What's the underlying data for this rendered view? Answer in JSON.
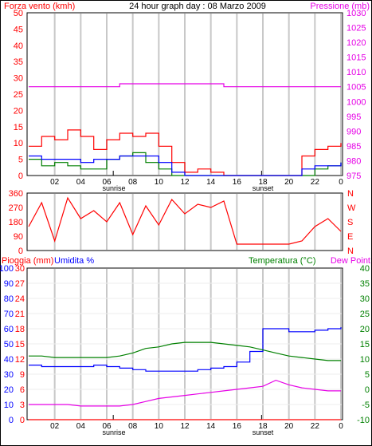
{
  "header": {
    "title": "24 hour graph day : 08 Marzo 2009",
    "left_label": "Forza vento (kmh)",
    "right_label": "Pressione (mb)"
  },
  "colors": {
    "red": "#ff0000",
    "green": "#008000",
    "blue": "#0000ff",
    "magenta": "#e600e6",
    "grid": "#c8c8c8",
    "sun_marker": "#000000"
  },
  "x_ticks": [
    "02",
    "04",
    "06",
    "08",
    "10",
    "12",
    "14",
    "16",
    "18",
    "20",
    "22",
    "0"
  ],
  "x_markers": {
    "sunrise": "sunrise",
    "sunset": "sunset"
  },
  "chart_data": [
    {
      "type": "line",
      "name": "wind_pressure",
      "x": [
        0,
        1,
        2,
        3,
        4,
        5,
        6,
        7,
        8,
        9,
        10,
        11,
        12,
        13,
        14,
        15,
        16,
        17,
        18,
        19,
        20,
        21,
        22,
        23,
        24
      ],
      "y_left_ticks": [
        "0",
        "5",
        "10",
        "15",
        "20",
        "25",
        "30",
        "35",
        "40",
        "45",
        "50"
      ],
      "y_right_ticks": [
        "975",
        "980",
        "985",
        "990",
        "995",
        "1000",
        "1005",
        "1010",
        "1015",
        "1020",
        "1025",
        "1030"
      ],
      "ylim_left": [
        0,
        50
      ],
      "ylim_right": [
        975,
        1030
      ],
      "series": [
        {
          "color": "red",
          "axis": "left",
          "values": [
            9,
            12,
            11,
            14,
            12,
            8,
            11,
            13,
            12,
            13,
            9,
            4,
            1,
            2,
            1,
            0,
            0,
            0,
            0,
            0,
            0,
            6,
            8,
            9,
            10
          ]
        },
        {
          "color": "green",
          "axis": "left",
          "values": [
            5,
            3,
            4,
            3,
            2,
            2,
            5,
            6,
            7,
            4,
            2,
            0,
            0,
            0,
            0,
            0,
            0,
            0,
            0,
            0,
            0,
            0,
            2,
            3,
            4
          ]
        },
        {
          "color": "blue",
          "axis": "left",
          "values": [
            6,
            5,
            5,
            5,
            4,
            5,
            5,
            6,
            6,
            6,
            4,
            1,
            0,
            0,
            0,
            0,
            0,
            0,
            0,
            0,
            0,
            2,
            3,
            3,
            4
          ]
        },
        {
          "color": "magenta",
          "axis": "right",
          "values": [
            1005,
            1005,
            1005,
            1005,
            1005,
            1005,
            1005,
            1006,
            1006,
            1006,
            1006,
            1006,
            1006,
            1006,
            1006,
            1005,
            1005,
            1005,
            1005,
            1005,
            1005,
            1005,
            1005,
            1005,
            1005
          ]
        }
      ]
    },
    {
      "type": "line",
      "name": "wind_direction",
      "y_left_ticks": [
        "0",
        "90",
        "180",
        "270",
        "360"
      ],
      "y_right_ticks": [
        "N",
        "E",
        "S",
        "W",
        "N"
      ],
      "ylim": [
        0,
        360
      ],
      "series": [
        {
          "color": "red",
          "values": [
            150,
            300,
            60,
            330,
            200,
            250,
            180,
            300,
            100,
            280,
            160,
            320,
            230,
            290,
            270,
            310,
            40,
            40,
            40,
            40,
            40,
            60,
            150,
            200,
            120
          ]
        }
      ]
    },
    {
      "type": "line",
      "name": "rain_humidity_temp",
      "left_label_rain": "Pioggia (mm)",
      "left_label_hum": "Umidita %",
      "right_label_temp": "Temperatura (°C)",
      "right_label_dew": "Dew Point",
      "y_rain_ticks": [
        "0",
        "3",
        "6",
        "9",
        "12",
        "15",
        "18",
        "21",
        "24",
        "27",
        "30"
      ],
      "y_hum_ticks": [
        "0",
        "10",
        "20",
        "30",
        "40",
        "50",
        "60",
        "70",
        "80",
        "90",
        "100"
      ],
      "y_temp_ticks": [
        "-10",
        "-5",
        "0",
        "5",
        "10",
        "15",
        "20",
        "25",
        "30",
        "35",
        "40"
      ],
      "ylim_hum": [
        0,
        100
      ],
      "ylim_temp": [
        -10,
        40
      ],
      "series": [
        {
          "color": "red",
          "axis": "rain",
          "values": [
            0,
            0,
            0,
            0,
            0,
            0,
            0,
            0,
            0,
            0,
            0,
            0,
            0,
            0,
            0,
            0,
            0,
            0,
            0,
            0,
            0,
            0,
            0,
            0,
            0
          ]
        },
        {
          "color": "blue",
          "axis": "hum",
          "values": [
            36,
            35,
            35,
            35,
            35,
            36,
            35,
            34,
            33,
            32,
            32,
            32,
            32,
            33,
            34,
            35,
            38,
            45,
            60,
            60,
            58,
            58,
            59,
            60,
            61
          ]
        },
        {
          "color": "green",
          "axis": "temp",
          "values": [
            11,
            11,
            10.5,
            10.5,
            10.5,
            10.5,
            10.5,
            11,
            12,
            13.5,
            14,
            15,
            15.5,
            15.5,
            15.5,
            15,
            14.5,
            14,
            13,
            12,
            11,
            10.5,
            10,
            9.5,
            9.5
          ]
        },
        {
          "color": "magenta",
          "axis": "temp",
          "values": [
            -5,
            -5,
            -5,
            -5,
            -5.5,
            -5.5,
            -5.5,
            -5.5,
            -5,
            -4,
            -3,
            -2.5,
            -2,
            -1.5,
            -1,
            -0.5,
            0,
            0.5,
            1,
            3,
            1.5,
            0.5,
            0,
            -0.5,
            -0.5
          ]
        }
      ]
    }
  ]
}
